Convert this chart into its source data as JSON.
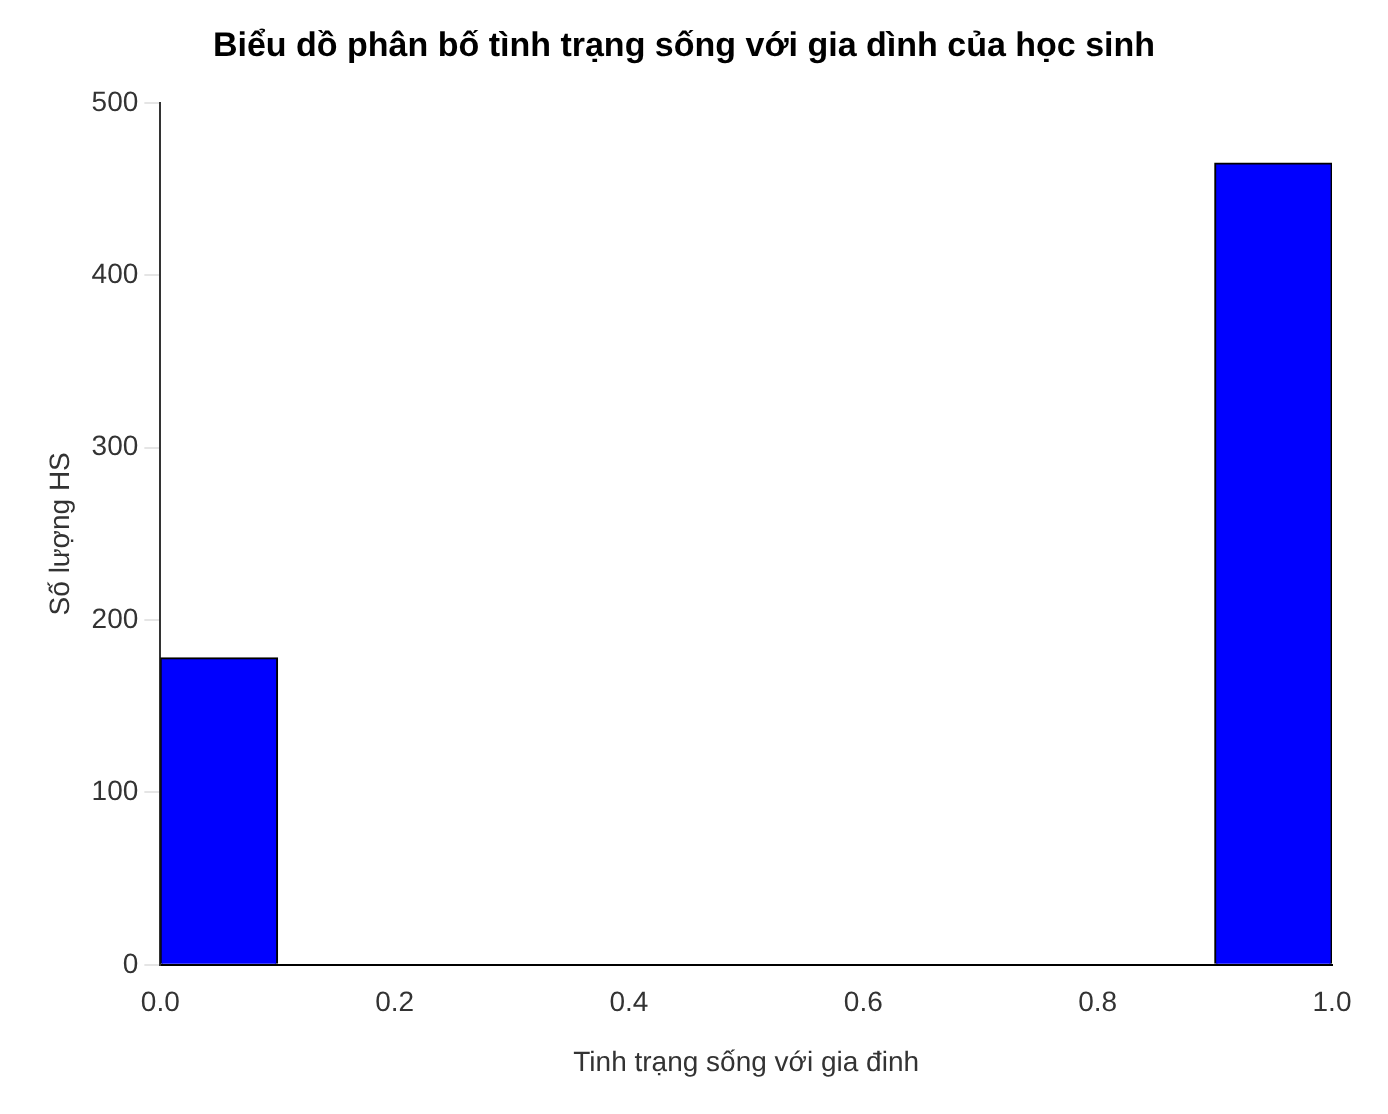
{
  "chart_data": {
    "type": "histogram",
    "title": "Biểu dồ phân bố tình trạng sống với gia dình của học sinh",
    "xlabel": "Tinh trạng sống với gia đinh",
    "ylabel": "Số lượng HS",
    "bins": [
      0,
      0.1,
      0.2,
      0.3,
      0.4,
      0.5,
      0.6,
      0.7,
      0.8,
      0.9,
      1.0
    ],
    "values": [
      178,
      0,
      0,
      0,
      0,
      0,
      0,
      0,
      0,
      465
    ],
    "color": "#0000ff",
    "xlim": [
      0,
      1
    ],
    "xticks": [
      {
        "value": 0,
        "label": "0.0"
      },
      0.2,
      0.4,
      0.6,
      0.8,
      {
        "value": 1,
        "label": "1.0"
      }
    ],
    "ylim": [
      0,
      500
    ],
    "yticks": [
      0,
      100,
      200,
      300,
      400,
      500
    ],
    "grid": false,
    "legend": false
  }
}
